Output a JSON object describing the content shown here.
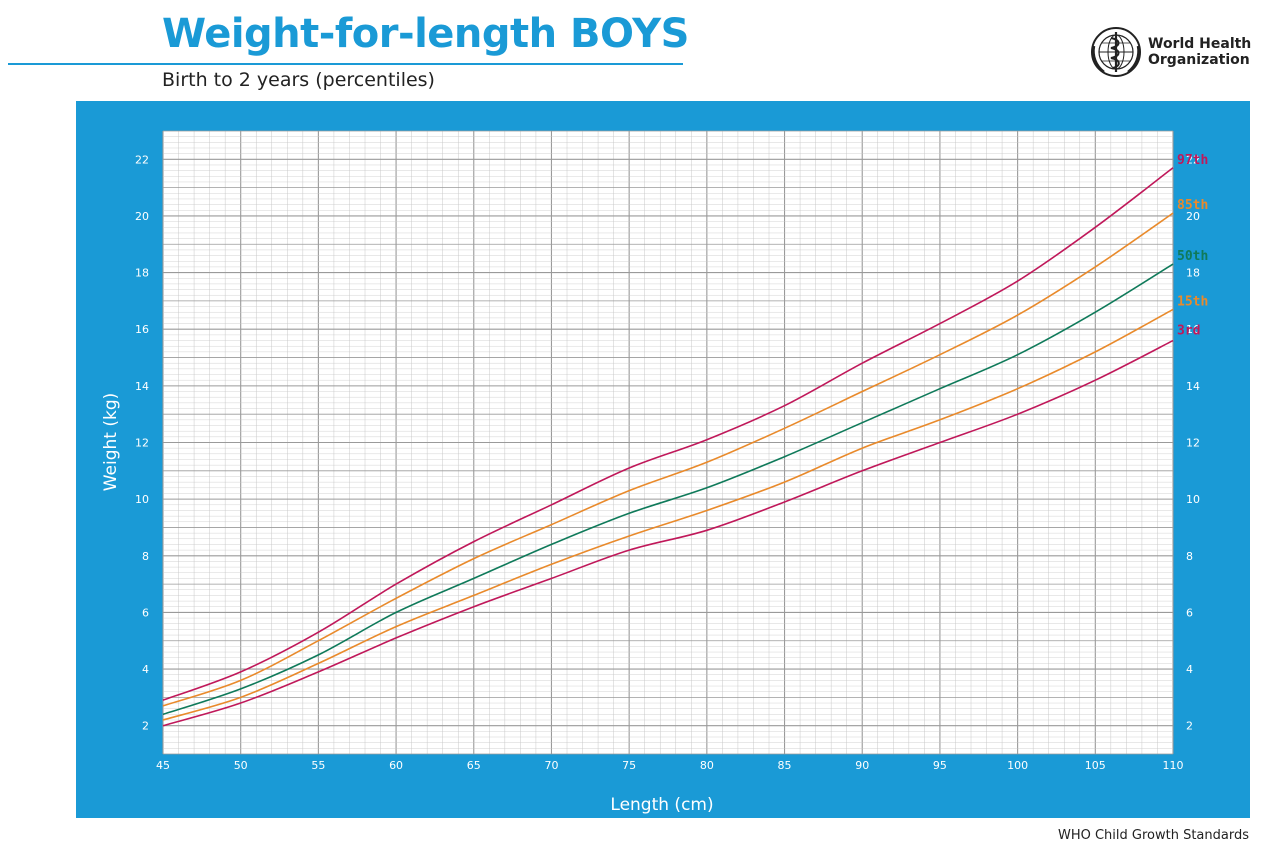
{
  "header": {
    "title": "Weight-for-length BOYS",
    "subtitle": "Birth to 2 years (percentiles)"
  },
  "logo": {
    "org_line1": "World Health",
    "org_line2": "Organization",
    "icon": "who-emblem-icon"
  },
  "footer": {
    "text": "WHO Child Growth Standards"
  },
  "colors": {
    "brand_blue": "#1a9ad6",
    "grid_minor": "#c8c8c8",
    "grid_major": "#9a9a9a",
    "p3": "#c0185a",
    "p15": "#e98a2b",
    "p50": "#0f7a5a",
    "p85": "#e98a2b",
    "p97": "#c0185a"
  },
  "chart_data": {
    "type": "line",
    "xlabel": "Length (cm)",
    "ylabel": "Weight (kg)",
    "xlim": [
      45,
      110
    ],
    "ylim": [
      1,
      23
    ],
    "x_ticks": [
      45,
      50,
      55,
      60,
      65,
      70,
      75,
      80,
      85,
      90,
      95,
      100,
      105,
      110
    ],
    "y_ticks": [
      2,
      4,
      6,
      8,
      10,
      12,
      14,
      16,
      18,
      20,
      22
    ],
    "grid": true,
    "legend": "line-end labels at right",
    "x": [
      45,
      50,
      55,
      60,
      65,
      70,
      75,
      80,
      85,
      90,
      95,
      100,
      105,
      110
    ],
    "series": [
      {
        "name": "3rd",
        "values": [
          2.0,
          2.8,
          3.9,
          5.1,
          6.2,
          7.2,
          8.2,
          8.9,
          9.9,
          11.0,
          12.0,
          13.0,
          14.2,
          15.6
        ]
      },
      {
        "name": "15th",
        "values": [
          2.2,
          3.0,
          4.2,
          5.5,
          6.6,
          7.7,
          8.7,
          9.6,
          10.6,
          11.8,
          12.8,
          13.9,
          15.2,
          16.7
        ]
      },
      {
        "name": "50th",
        "values": [
          2.4,
          3.3,
          4.5,
          6.0,
          7.2,
          8.4,
          9.5,
          10.4,
          11.5,
          12.7,
          13.9,
          15.1,
          16.6,
          18.3
        ]
      },
      {
        "name": "85th",
        "values": [
          2.7,
          3.6,
          5.0,
          6.5,
          7.9,
          9.1,
          10.3,
          11.3,
          12.5,
          13.8,
          15.1,
          16.5,
          18.2,
          20.1
        ]
      },
      {
        "name": "97th",
        "values": [
          2.9,
          3.9,
          5.3,
          7.0,
          8.5,
          9.8,
          11.1,
          12.1,
          13.3,
          14.8,
          16.2,
          17.7,
          19.6,
          21.7
        ]
      }
    ]
  }
}
